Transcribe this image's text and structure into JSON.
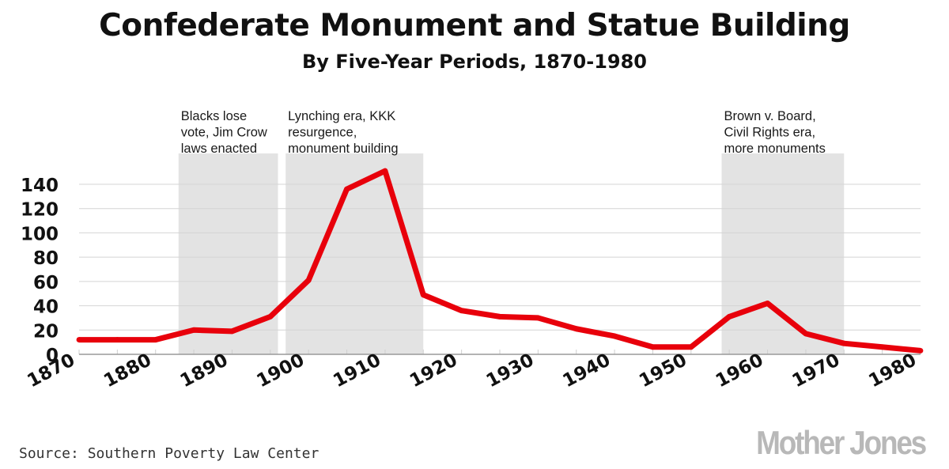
{
  "chart_data": {
    "type": "line",
    "title": "Confederate Monument and Statue Building",
    "subtitle": "By Five-Year Periods, 1870-1980",
    "xlabel": "",
    "ylabel": "",
    "xlim": [
      1870,
      1980
    ],
    "ylim": [
      0,
      150
    ],
    "x_ticks": [
      1870,
      1880,
      1890,
      1900,
      1910,
      1920,
      1930,
      1940,
      1950,
      1960,
      1970,
      1980
    ],
    "y_ticks": [
      0,
      20,
      40,
      60,
      80,
      100,
      120,
      140
    ],
    "grid": true,
    "series": [
      {
        "color": "#e8000b",
        "points": [
          {
            "x": 1870,
            "y": 12
          },
          {
            "x": 1875,
            "y": 12
          },
          {
            "x": 1880,
            "y": 12
          },
          {
            "x": 1885,
            "y": 20
          },
          {
            "x": 1890,
            "y": 19
          },
          {
            "x": 1895,
            "y": 31
          },
          {
            "x": 1900,
            "y": 61
          },
          {
            "x": 1905,
            "y": 136
          },
          {
            "x": 1910,
            "y": 151
          },
          {
            "x": 1915,
            "y": 49
          },
          {
            "x": 1920,
            "y": 36
          },
          {
            "x": 1925,
            "y": 31
          },
          {
            "x": 1930,
            "y": 30
          },
          {
            "x": 1935,
            "y": 21
          },
          {
            "x": 1940,
            "y": 15
          },
          {
            "x": 1945,
            "y": 6
          },
          {
            "x": 1950,
            "y": 6
          },
          {
            "x": 1955,
            "y": 31
          },
          {
            "x": 1960,
            "y": 42
          },
          {
            "x": 1965,
            "y": 17
          },
          {
            "x": 1970,
            "y": 9
          },
          {
            "x": 1975,
            "y": 6
          },
          {
            "x": 1980,
            "y": 3
          }
        ]
      }
    ],
    "shaded_periods": [
      {
        "start": 1883,
        "end": 1896,
        "lines": [
          "Blacks lose",
          "vote, Jim Crow",
          "laws enacted"
        ]
      },
      {
        "start": 1897,
        "end": 1915,
        "lines": [
          "Lynching era, KKK",
          "resurgence,",
          "monument building"
        ]
      },
      {
        "start": 1954,
        "end": 1970,
        "lines": [
          "Brown v. Board,",
          "Civil Rights era,",
          "more monuments"
        ]
      }
    ],
    "colors": {
      "line": "#e8000b",
      "shade": "#e3e3e3",
      "grid": "#d4d4d4"
    }
  },
  "source": "Source: Southern Poverty Law Center",
  "brand": "Mother Jones"
}
